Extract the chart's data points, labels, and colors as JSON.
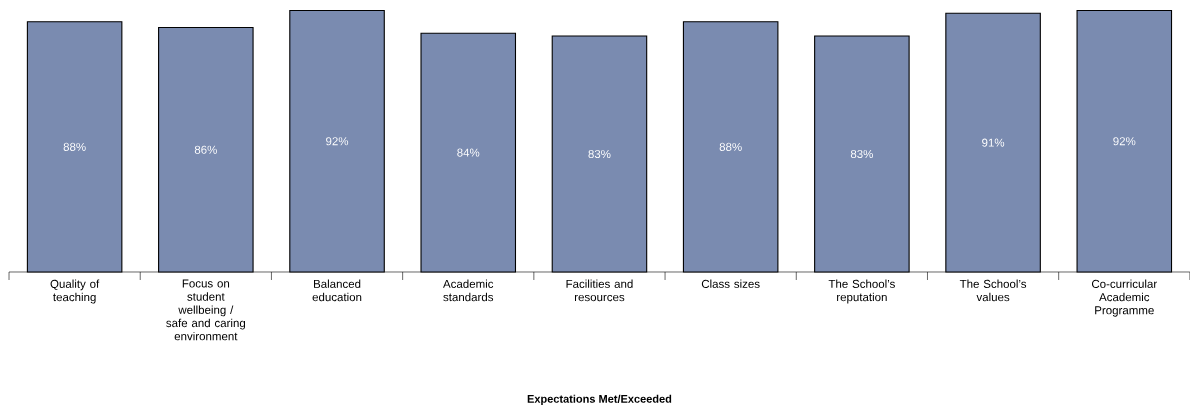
{
  "chart_data": {
    "type": "bar",
    "categories": [
      "Quality of teaching",
      "Focus on student wellbeing / safe and caring environment",
      "Balanced education",
      "Academic standards",
      "Facilities and resources",
      "Class sizes",
      "The School’s reputation",
      "The School’s values",
      "Co-curricular Academic Programme"
    ],
    "values": [
      88,
      86,
      92,
      84,
      83,
      88,
      83,
      91,
      92
    ],
    "value_labels": [
      "88%",
      "86%",
      "92%",
      "84%",
      "83%",
      "88%",
      "83%",
      "91%",
      "92%"
    ],
    "color": "#7a8bb0",
    "xlabel": "Expectations Met/Exceeded"
  }
}
